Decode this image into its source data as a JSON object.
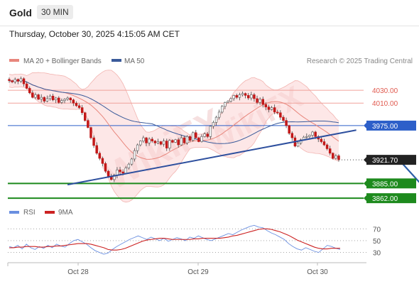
{
  "header": {
    "instrument": "Gold",
    "timeframe": "30 MIN",
    "datetime": "Thursday, October 30, 2025 4:15:05 AM CET"
  },
  "legend": {
    "ma20": "MA 20 + Bollinger Bands",
    "ma50": "MA 50",
    "ma20_color": "#e8867c",
    "ma50_color": "#3a5a9a"
  },
  "copyright": "Research © 2025 Trading Central",
  "watermark": "WikiFX",
  "rsi_legend": {
    "rsi": "RSI",
    "ma9": "9MA",
    "rsi_color": "#6a8fe0",
    "ma9_color": "#cc2222"
  },
  "chart_data": [
    {
      "type": "candlestick",
      "x_labels": [
        "Oct 28",
        "Oct 29",
        "Oct 30"
      ],
      "ylim": [
        3850,
        4060
      ],
      "last_price": 3921.7,
      "levels": [
        {
          "label": "4030.00",
          "value": 4030.0,
          "color": "#e05a4f",
          "style": "resistance"
        },
        {
          "label": "4010.00",
          "value": 4010.0,
          "color": "#e05a4f",
          "style": "resistance"
        },
        {
          "label": "3975.00",
          "value": 3975.0,
          "color": "#2d5fc9",
          "style": "pivot"
        },
        {
          "label": "3921.70",
          "value": 3921.7,
          "color": "#222222",
          "style": "last"
        },
        {
          "label": "3885.00",
          "value": 3885.0,
          "color": "#1d8a1d",
          "style": "support"
        },
        {
          "label": "3862.00",
          "value": 3862.0,
          "color": "#1d8a1d",
          "style": "support"
        }
      ],
      "trendline": {
        "from": {
          "i": 20,
          "v": 3883
        },
        "to": {
          "i": 119,
          "v": 3968
        }
      },
      "arrow": {
        "from": {
          "i": 134,
          "v": 3920
        },
        "to": {
          "i": 144,
          "v": 3870
        }
      },
      "closes": [
        4045,
        4043,
        4047,
        4044,
        4048,
        4040,
        4033,
        4026,
        4019,
        4023,
        4016,
        4019,
        4013,
        4017,
        4021,
        4015,
        4018,
        4011,
        4014,
        4016,
        4018,
        4015,
        4010,
        4006,
        4003,
        3995,
        3983,
        3972,
        3956,
        3944,
        3932,
        3924,
        3916,
        3904,
        3896,
        3891,
        3898,
        3906,
        3903,
        3901,
        3909,
        3915,
        3923,
        3936,
        3945,
        3951,
        3956,
        3948,
        3954,
        3951,
        3948,
        3950,
        3946,
        3951,
        3940,
        3952,
        3949,
        3953,
        3945,
        3956,
        3948,
        3958,
        3952,
        3964,
        3956,
        3950,
        3958,
        3962,
        3958,
        3974,
        3980,
        3988,
        3996,
        4005,
        4011,
        4013,
        4017,
        4022,
        4019,
        4023,
        4025,
        4022,
        4018,
        4023,
        4017,
        4011,
        4016,
        4008,
        4004,
        4000,
        4003,
        3996,
        3995,
        3988,
        3983,
        3975,
        3963,
        3956,
        3943,
        3948,
        3953,
        3957,
        3958,
        3960,
        3965,
        3958,
        3954,
        3950,
        3945,
        3939,
        3932,
        3924,
        3928,
        3922
      ]
    },
    {
      "type": "line",
      "name": "RSI panel",
      "ylim": [
        15,
        80
      ],
      "yticks": [
        30,
        50,
        70
      ],
      "series": [
        {
          "name": "RSI",
          "values": [
            40,
            38,
            42,
            36,
            44,
            38,
            35,
            40,
            37,
            42,
            38,
            44,
            41,
            39,
            45,
            50,
            52,
            48,
            44,
            38,
            33,
            30,
            27,
            29,
            35,
            40,
            44,
            48,
            52,
            55,
            58,
            55,
            52,
            56,
            53,
            50,
            54,
            49,
            52,
            55,
            53,
            50,
            56,
            54,
            58,
            55,
            52,
            50,
            53,
            56,
            59,
            62,
            60,
            64,
            68,
            71,
            74,
            76,
            73,
            72,
            67,
            63,
            60,
            56,
            52,
            45,
            40,
            36,
            34,
            38,
            35,
            32,
            30,
            36,
            42,
            40,
            37,
            35
          ]
        },
        {
          "name": "9MA",
          "values": [
            38,
            38,
            39,
            39,
            40,
            40,
            40,
            39,
            39,
            40,
            40,
            41,
            41,
            42,
            43,
            44,
            45,
            45,
            45,
            44,
            42,
            40,
            38,
            35,
            34,
            34,
            35,
            37,
            40,
            43,
            46,
            49,
            51,
            52,
            53,
            54,
            54,
            53,
            52,
            52,
            52,
            52,
            52,
            53,
            53,
            54,
            54,
            54,
            54,
            54,
            55,
            56,
            58,
            59,
            61,
            63,
            65,
            67,
            69,
            70,
            70,
            69,
            67,
            65,
            62,
            59,
            55,
            51,
            48,
            45,
            42,
            39,
            37,
            36,
            36,
            37,
            37,
            37
          ]
        }
      ]
    }
  ]
}
